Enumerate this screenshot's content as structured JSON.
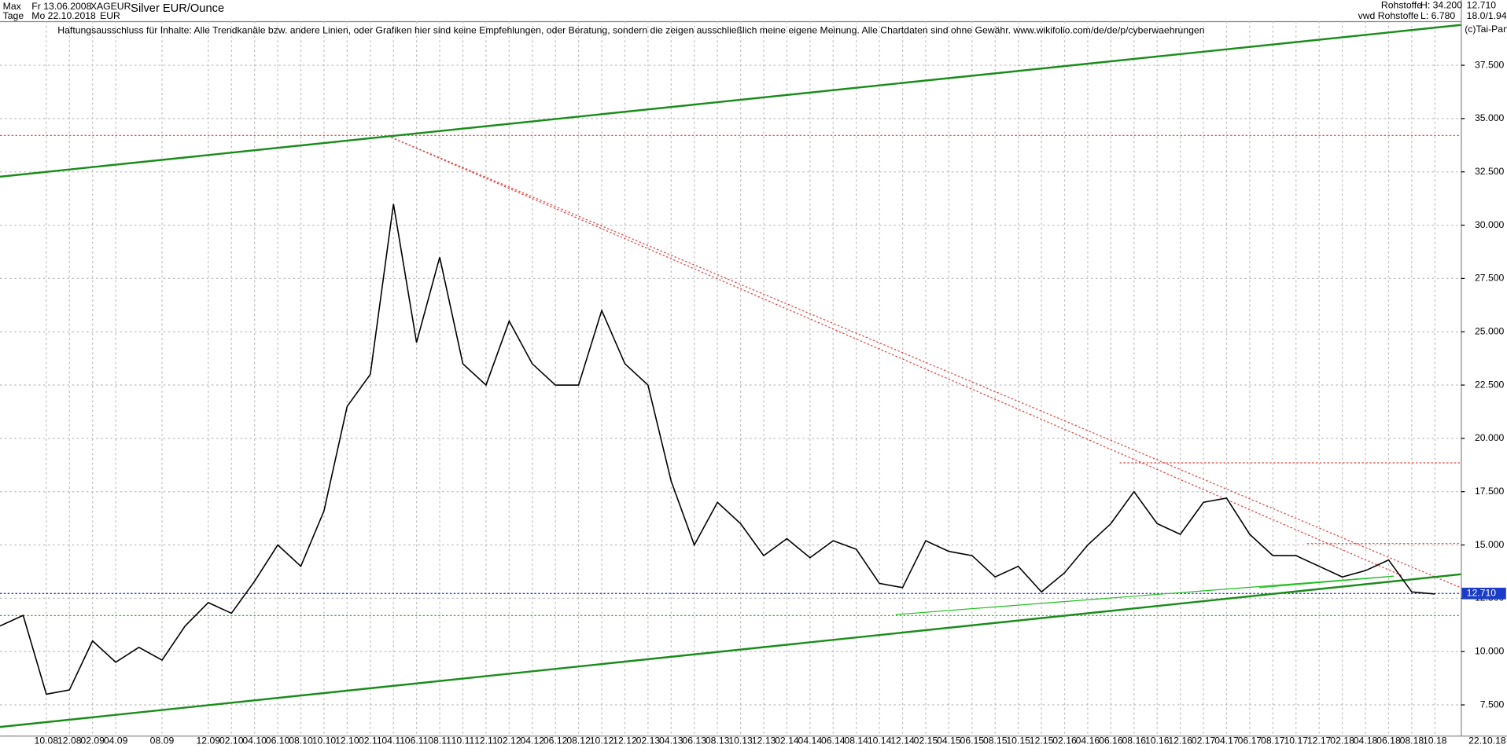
{
  "header": {
    "range": "Max",
    "interval": "Tage",
    "from": "Fr 13.06.2008",
    "to": "Mo 22.10.2018",
    "symbol": "XAGEUR",
    "currency": "EUR",
    "name": "Silver EUR/Ounce",
    "group": "Rohstoffe",
    "source": "vwd Rohstoffe",
    "high": "H: 34.200",
    "low": "L: 6.780",
    "last": "12.710",
    "change": "18.0/1.940",
    "copyright": "(c)Tai-Pan",
    "disclaimer": "Haftungsausschluss für Inhalte: Alle Trendkanäle bzw. andere Linien, oder Grafiken hier sind keine Empfehlungen, oder Beratung, sondern die zeigen ausschließlich meine eigene Meinung. Alle Chartdaten sind ohne Gewähr.  www.wikifolio.com/de/de/p/cyberwaehrungen",
    "end_date": "22.10.18"
  },
  "chart_data": {
    "type": "line",
    "grid": true,
    "categories": [
      null,
      null,
      "10.08",
      "12.08",
      "02.09",
      "04.09",
      null,
      "08.09",
      null,
      "12.09",
      "02.10",
      "04.10",
      "06.10",
      "08.10",
      "10.10",
      "12.10",
      "02.11",
      "04.11",
      "06.11",
      "08.11",
      "10.11",
      "12.11",
      "02.12",
      "04.12",
      "06.12",
      "08.12",
      "10.12",
      "12.12",
      "02.13",
      "04.13",
      "06.13",
      "08.13",
      "10.13",
      "12.13",
      "02.14",
      "04.14",
      "06.14",
      "08.14",
      "10.14",
      "12.14",
      "02.15",
      "04.15",
      "06.15",
      "08.15",
      "10.15",
      "12.15",
      "02.16",
      "04.16",
      "06.16",
      "08.16",
      "10.16",
      "12.16",
      "02.17",
      "04.17",
      "06.17",
      "08.17",
      "10.17",
      "12.17",
      "02.18",
      "04.18",
      "06.18",
      "08.18",
      "10.18"
    ],
    "series": [
      {
        "name": "Silver EUR/Ounce",
        "color": "#000000",
        "values": [
          11.2,
          11.7,
          8.0,
          8.2,
          10.5,
          9.5,
          10.2,
          9.6,
          11.2,
          12.3,
          11.8,
          13.3,
          15.0,
          14.0,
          16.6,
          21.5,
          23.0,
          31.0,
          24.5,
          28.5,
          23.5,
          22.5,
          25.5,
          23.5,
          22.5,
          22.5,
          26.0,
          23.5,
          22.5,
          18.0,
          15.0,
          17.0,
          16.0,
          14.5,
          15.3,
          14.4,
          15.2,
          14.8,
          13.2,
          13.0,
          15.2,
          14.7,
          14.5,
          13.5,
          14.0,
          12.8,
          13.7,
          15.0,
          16.0,
          17.5,
          16.0,
          15.5,
          17.0,
          17.2,
          15.5,
          14.5,
          14.5,
          14.0,
          13.5,
          13.8,
          14.3,
          12.8,
          12.7
        ]
      }
    ],
    "ylim": [
      6.06,
      39.57
    ],
    "yticks": [
      {
        "value": 7.5,
        "label": "7.500"
      },
      {
        "value": 10,
        "label": "10.000"
      },
      {
        "value": 12.5,
        "label": "12.500"
      },
      {
        "value": 15,
        "label": "15.000"
      },
      {
        "value": 17.5,
        "label": "17.500"
      },
      {
        "value": 20,
        "label": "20.000"
      },
      {
        "value": 22.5,
        "label": "22.500"
      },
      {
        "value": 25,
        "label": "25.000"
      },
      {
        "value": 27.5,
        "label": "27.500"
      },
      {
        "value": 30,
        "label": "30.000"
      },
      {
        "value": 32.5,
        "label": "32.500"
      },
      {
        "value": 35,
        "label": "35.000"
      },
      {
        "value": 37.5,
        "label": "37.500"
      }
    ]
  }
}
